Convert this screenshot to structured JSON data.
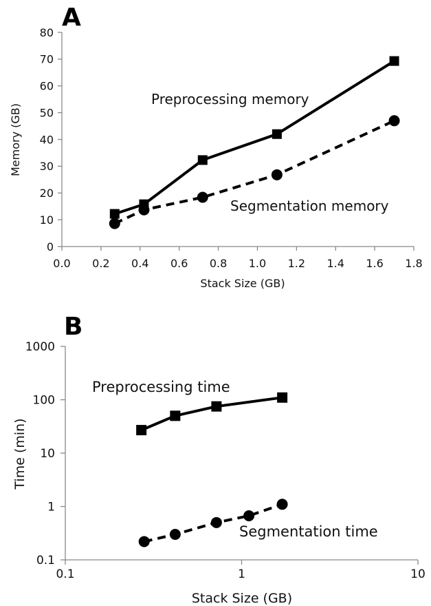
{
  "chart_data": [
    {
      "panel": "A",
      "type": "line",
      "xlabel": "Stack Size (GB)",
      "ylabel": "Memory (GB)",
      "xlim": [
        0.0,
        1.8
      ],
      "ylim": [
        0,
        80
      ],
      "xticks": [
        "0.0",
        "0.2",
        "0.4",
        "0.6",
        "0.8",
        "1.0",
        "1.2",
        "1.4",
        "1.6",
        "1.8"
      ],
      "yticks": [
        "0",
        "10",
        "20",
        "30",
        "40",
        "50",
        "60",
        "70",
        "80"
      ],
      "grid": false,
      "series": [
        {
          "name": "Preprocessing memory",
          "marker": "square",
          "line": "solid",
          "x": [
            0.27,
            0.42,
            0.72,
            1.1,
            1.7
          ],
          "y": [
            12.2,
            15.8,
            32.3,
            42.0,
            69.3
          ]
        },
        {
          "name": "Segmentation memory",
          "marker": "circle",
          "line": "dashed",
          "x": [
            0.27,
            0.42,
            0.72,
            1.1,
            1.7
          ],
          "y": [
            8.6,
            13.7,
            18.4,
            26.8,
            47.0
          ]
        }
      ]
    },
    {
      "panel": "B",
      "type": "line",
      "xlabel": "Stack Size (GB)",
      "ylabel": "Time (min)",
      "xscale": "log",
      "yscale": "log",
      "xlim": [
        0.1,
        10
      ],
      "ylim": [
        0.1,
        1000
      ],
      "xticks": [
        "0.1",
        "1",
        "10"
      ],
      "yticks": [
        "0.1",
        "1",
        "10",
        "100",
        "1000"
      ],
      "grid": false,
      "series": [
        {
          "name": "Preprocessing time",
          "marker": "square",
          "line": "solid",
          "x": [
            0.27,
            0.42,
            0.72,
            1.7
          ],
          "y": [
            27,
            50,
            75,
            110
          ]
        },
        {
          "name": "Segmentation time",
          "marker": "circle",
          "line": "dashed",
          "x": [
            0.28,
            0.42,
            0.72,
            1.1,
            1.7
          ],
          "y": [
            0.22,
            0.3,
            0.5,
            0.67,
            1.1
          ]
        }
      ]
    }
  ]
}
